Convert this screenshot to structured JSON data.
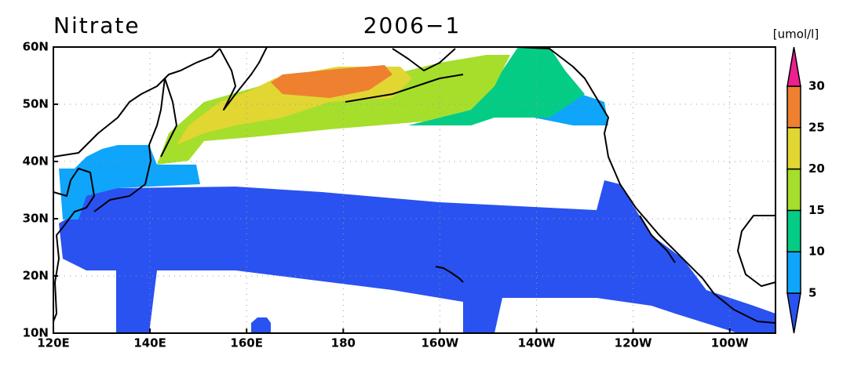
{
  "title": "Nitrate",
  "date": "2006−1",
  "units": "[umol/l]",
  "x_axis": {
    "labels": [
      "120E",
      "140E",
      "160E",
      "180",
      "160W",
      "140W",
      "120W",
      "100W"
    ]
  },
  "y_axis": {
    "labels": [
      "10N",
      "20N",
      "30N",
      "40N",
      "50N",
      "60N"
    ]
  },
  "colorbar": {
    "levels": [
      5,
      10,
      15,
      20,
      25,
      30
    ],
    "colors": [
      "#2a52f0",
      "#0ea5fb",
      "#05cc85",
      "#a6de2c",
      "#e1d632",
      "#ee8030",
      "#ee1f8f"
    ]
  }
}
